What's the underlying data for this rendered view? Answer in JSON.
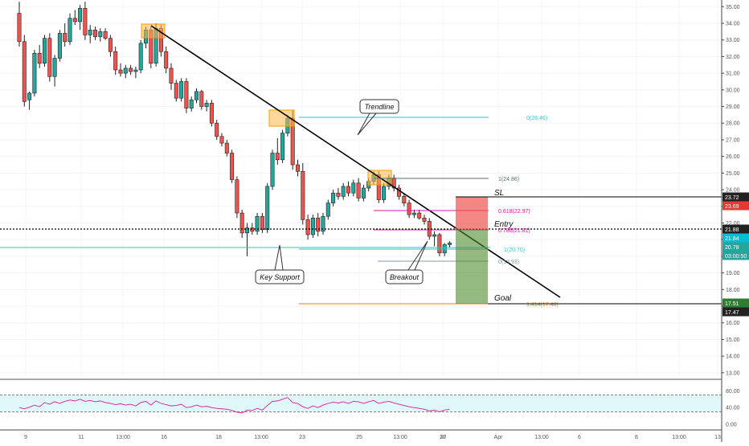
{
  "chart_data": {
    "type": "candlestick",
    "price_axis": {
      "ticks": [
        "35.00",
        "34.00",
        "33.00",
        "32.00",
        "31.00",
        "30.00",
        "29.00",
        "28.00",
        "27.00",
        "26.00",
        "25.00",
        "24.00",
        "23.00",
        "22.00",
        "21.00",
        "20.00",
        "19.00",
        "18.00",
        "17.00",
        "16.00",
        "15.00",
        "14.00",
        "13.00"
      ],
      "range": [
        12.8,
        35.4
      ]
    },
    "time_axis": {
      "ticks": [
        "9",
        "11",
        "13:00",
        "16",
        "18",
        "13:00",
        "23",
        "25",
        "13:00",
        "27",
        "30",
        "Apr",
        "13:00",
        "6",
        "8",
        "13:00",
        "13"
      ]
    },
    "price_badges": [
      {
        "value": "23.72",
        "color": "#222222"
      },
      {
        "value": "23.69",
        "color": "#e53935"
      },
      {
        "value": "21.88",
        "color": "#222222"
      },
      {
        "value": "21.84",
        "color": "#00bcd4"
      },
      {
        "value": "20.78",
        "color": "#26a69a"
      },
      {
        "value": "03:00:50",
        "color": "#26a69a"
      },
      {
        "value": "17.51",
        "color": "#2e7d32"
      },
      {
        "value": "17.47",
        "color": "#222222"
      }
    ],
    "candles": [
      {
        "o": 34.6,
        "h": 35.3,
        "l": 32.6,
        "c": 32.9
      },
      {
        "o": 32.9,
        "h": 33.3,
        "l": 29.0,
        "c": 29.3
      },
      {
        "o": 29.4,
        "h": 29.9,
        "l": 28.8,
        "c": 29.8
      },
      {
        "o": 29.8,
        "h": 32.4,
        "l": 29.6,
        "c": 32.2
      },
      {
        "o": 32.2,
        "h": 32.7,
        "l": 31.3,
        "c": 31.6
      },
      {
        "o": 31.6,
        "h": 33.3,
        "l": 31.4,
        "c": 33.1
      },
      {
        "o": 33.1,
        "h": 33.4,
        "l": 30.5,
        "c": 30.8
      },
      {
        "o": 30.8,
        "h": 32.1,
        "l": 30.2,
        "c": 31.9
      },
      {
        "o": 31.9,
        "h": 33.6,
        "l": 31.7,
        "c": 33.4
      },
      {
        "o": 33.4,
        "h": 34.0,
        "l": 32.6,
        "c": 32.9
      },
      {
        "o": 32.9,
        "h": 34.6,
        "l": 32.7,
        "c": 34.3
      },
      {
        "o": 34.3,
        "h": 34.8,
        "l": 33.9,
        "c": 34.1
      },
      {
        "o": 34.1,
        "h": 35.1,
        "l": 33.6,
        "c": 34.9
      },
      {
        "o": 34.9,
        "h": 35.3,
        "l": 33.0,
        "c": 33.3
      },
      {
        "o": 33.3,
        "h": 33.9,
        "l": 32.8,
        "c": 33.6
      },
      {
        "o": 33.6,
        "h": 33.8,
        "l": 33.0,
        "c": 33.2
      },
      {
        "o": 33.2,
        "h": 33.7,
        "l": 32.9,
        "c": 33.5
      },
      {
        "o": 33.5,
        "h": 33.7,
        "l": 33.0,
        "c": 33.1
      },
      {
        "o": 33.1,
        "h": 33.3,
        "l": 32.0,
        "c": 32.3
      },
      {
        "o": 32.3,
        "h": 32.6,
        "l": 30.9,
        "c": 31.2
      },
      {
        "o": 31.2,
        "h": 31.6,
        "l": 30.8,
        "c": 31.0
      },
      {
        "o": 31.0,
        "h": 31.5,
        "l": 30.7,
        "c": 31.3
      },
      {
        "o": 31.3,
        "h": 31.5,
        "l": 30.9,
        "c": 31.1
      },
      {
        "o": 31.1,
        "h": 31.4,
        "l": 30.7,
        "c": 31.2
      },
      {
        "o": 31.2,
        "h": 33.0,
        "l": 31.0,
        "c": 32.8
      },
      {
        "o": 32.8,
        "h": 33.8,
        "l": 32.5,
        "c": 33.6
      },
      {
        "o": 33.6,
        "h": 33.8,
        "l": 31.3,
        "c": 31.6
      },
      {
        "o": 31.6,
        "h": 34.0,
        "l": 31.4,
        "c": 33.7
      },
      {
        "o": 33.7,
        "h": 33.9,
        "l": 32.0,
        "c": 32.3
      },
      {
        "o": 32.3,
        "h": 32.6,
        "l": 31.0,
        "c": 31.3
      },
      {
        "o": 31.3,
        "h": 31.6,
        "l": 30.0,
        "c": 30.4
      },
      {
        "o": 30.4,
        "h": 30.6,
        "l": 29.3,
        "c": 29.5
      },
      {
        "o": 29.5,
        "h": 30.7,
        "l": 29.3,
        "c": 30.5
      },
      {
        "o": 30.5,
        "h": 30.7,
        "l": 28.6,
        "c": 28.9
      },
      {
        "o": 28.9,
        "h": 29.6,
        "l": 28.7,
        "c": 29.4
      },
      {
        "o": 29.4,
        "h": 30.1,
        "l": 29.2,
        "c": 29.9
      },
      {
        "o": 29.9,
        "h": 30.0,
        "l": 28.8,
        "c": 29.0
      },
      {
        "o": 29.0,
        "h": 29.4,
        "l": 28.7,
        "c": 29.2
      },
      {
        "o": 29.2,
        "h": 29.4,
        "l": 27.8,
        "c": 28.0
      },
      {
        "o": 28.0,
        "h": 28.2,
        "l": 27.0,
        "c": 27.2
      },
      {
        "o": 27.2,
        "h": 27.4,
        "l": 26.6,
        "c": 26.8
      },
      {
        "o": 26.8,
        "h": 27.0,
        "l": 26.0,
        "c": 26.2
      },
      {
        "o": 26.2,
        "h": 26.4,
        "l": 24.4,
        "c": 24.6
      },
      {
        "o": 24.6,
        "h": 24.8,
        "l": 22.3,
        "c": 22.6
      },
      {
        "o": 22.6,
        "h": 22.8,
        "l": 21.1,
        "c": 21.4
      },
      {
        "o": 21.4,
        "h": 22.0,
        "l": 20.0,
        "c": 21.7
      },
      {
        "o": 21.7,
        "h": 22.0,
        "l": 21.3,
        "c": 21.5
      },
      {
        "o": 21.5,
        "h": 22.6,
        "l": 21.3,
        "c": 22.4
      },
      {
        "o": 22.4,
        "h": 22.6,
        "l": 21.4,
        "c": 21.6
      },
      {
        "o": 21.6,
        "h": 24.4,
        "l": 21.4,
        "c": 24.2
      },
      {
        "o": 24.2,
        "h": 26.4,
        "l": 24.0,
        "c": 26.2
      },
      {
        "o": 26.2,
        "h": 27.1,
        "l": 25.5,
        "c": 25.8
      },
      {
        "o": 25.8,
        "h": 27.6,
        "l": 25.6,
        "c": 27.4
      },
      {
        "o": 27.4,
        "h": 28.5,
        "l": 27.2,
        "c": 28.3
      },
      {
        "o": 28.3,
        "h": 28.8,
        "l": 25.2,
        "c": 25.5
      },
      {
        "o": 25.5,
        "h": 25.8,
        "l": 24.8,
        "c": 25.1
      },
      {
        "o": 25.1,
        "h": 25.6,
        "l": 21.9,
        "c": 22.2
      },
      {
        "o": 22.2,
        "h": 22.5,
        "l": 21.0,
        "c": 21.3
      },
      {
        "o": 21.3,
        "h": 22.5,
        "l": 21.1,
        "c": 22.3
      },
      {
        "o": 22.3,
        "h": 22.6,
        "l": 21.2,
        "c": 21.5
      },
      {
        "o": 21.5,
        "h": 22.6,
        "l": 21.3,
        "c": 22.4
      },
      {
        "o": 22.4,
        "h": 23.4,
        "l": 22.2,
        "c": 23.2
      },
      {
        "o": 23.2,
        "h": 24.0,
        "l": 23.0,
        "c": 23.8
      },
      {
        "o": 23.8,
        "h": 24.1,
        "l": 23.4,
        "c": 23.6
      },
      {
        "o": 23.6,
        "h": 24.4,
        "l": 23.4,
        "c": 24.2
      },
      {
        "o": 24.2,
        "h": 24.5,
        "l": 23.6,
        "c": 23.8
      },
      {
        "o": 23.8,
        "h": 24.6,
        "l": 23.6,
        "c": 24.4
      },
      {
        "o": 24.4,
        "h": 24.7,
        "l": 23.3,
        "c": 23.5
      },
      {
        "o": 23.5,
        "h": 24.3,
        "l": 23.3,
        "c": 24.1
      },
      {
        "o": 24.1,
        "h": 24.7,
        "l": 23.9,
        "c": 24.5
      },
      {
        "o": 24.5,
        "h": 25.1,
        "l": 24.3,
        "c": 24.9
      },
      {
        "o": 24.9,
        "h": 25.1,
        "l": 23.2,
        "c": 23.4
      },
      {
        "o": 23.4,
        "h": 24.4,
        "l": 23.2,
        "c": 24.2
      },
      {
        "o": 24.2,
        "h": 24.9,
        "l": 24.0,
        "c": 24.7
      },
      {
        "o": 24.7,
        "h": 24.9,
        "l": 23.9,
        "c": 24.1
      },
      {
        "o": 24.1,
        "h": 24.3,
        "l": 23.4,
        "c": 23.6
      },
      {
        "o": 23.6,
        "h": 23.8,
        "l": 23.0,
        "c": 23.2
      },
      {
        "o": 23.2,
        "h": 23.4,
        "l": 22.3,
        "c": 22.5
      },
      {
        "o": 22.5,
        "h": 22.8,
        "l": 22.3,
        "c": 22.6
      },
      {
        "o": 22.6,
        "h": 22.8,
        "l": 22.2,
        "c": 22.3
      },
      {
        "o": 22.3,
        "h": 22.5,
        "l": 21.9,
        "c": 22.1
      },
      {
        "o": 22.1,
        "h": 22.3,
        "l": 21.0,
        "c": 21.2
      },
      {
        "o": 21.2,
        "h": 21.5,
        "l": 20.6,
        "c": 21.3
      },
      {
        "o": 21.3,
        "h": 21.4,
        "l": 20.0,
        "c": 20.2
      },
      {
        "o": 20.2,
        "h": 20.8,
        "l": 20.0,
        "c": 20.7
      },
      {
        "o": 20.7,
        "h": 20.9,
        "l": 20.5,
        "c": 20.8
      }
    ],
    "fibonacci": [
      {
        "label": "0(28.46)",
        "color": "#26c6da"
      },
      {
        "label": "1(24.86)",
        "color": "#5d6d6b"
      },
      {
        "label": "0.618(22.97)",
        "color": "#d81b9a"
      },
      {
        "label": "0.786(21.81)",
        "color": "#d81b9a"
      },
      {
        "label": "1(20.70)",
        "color": "#26c6da"
      },
      {
        "label": "0(19.93)",
        "color": "#8a9a9a"
      },
      {
        "label": "1.414(17.48)",
        "color": "#f57c00"
      }
    ],
    "annotations": {
      "trendline": "Trendline",
      "key_support": "Key Support",
      "breakout": "Breakout",
      "sl": "SL",
      "entry": "Entry",
      "goal": "Goal"
    },
    "rsi": {
      "ticks": [
        "80.00",
        "40.00",
        "0.00"
      ],
      "range": [
        0,
        100
      ],
      "upper": 70,
      "lower": 30,
      "values": [
        40,
        37,
        41,
        46,
        42,
        52,
        48,
        54,
        50,
        55,
        58,
        56,
        60,
        55,
        57,
        54,
        56,
        52,
        50,
        47,
        49,
        46,
        48,
        44,
        52,
        55,
        46,
        56,
        50,
        47,
        44,
        45,
        48,
        40,
        42,
        46,
        42,
        43,
        40,
        38,
        37,
        36,
        33,
        29,
        27,
        34,
        33,
        38,
        34,
        45,
        55,
        56,
        60,
        64,
        52,
        50,
        42,
        38,
        44,
        40,
        46,
        50,
        53,
        51,
        54,
        50,
        55,
        54,
        50,
        54,
        57,
        50,
        53,
        55,
        51,
        48,
        45,
        42,
        40,
        38,
        36,
        32,
        34,
        30,
        34,
        36
      ]
    }
  }
}
